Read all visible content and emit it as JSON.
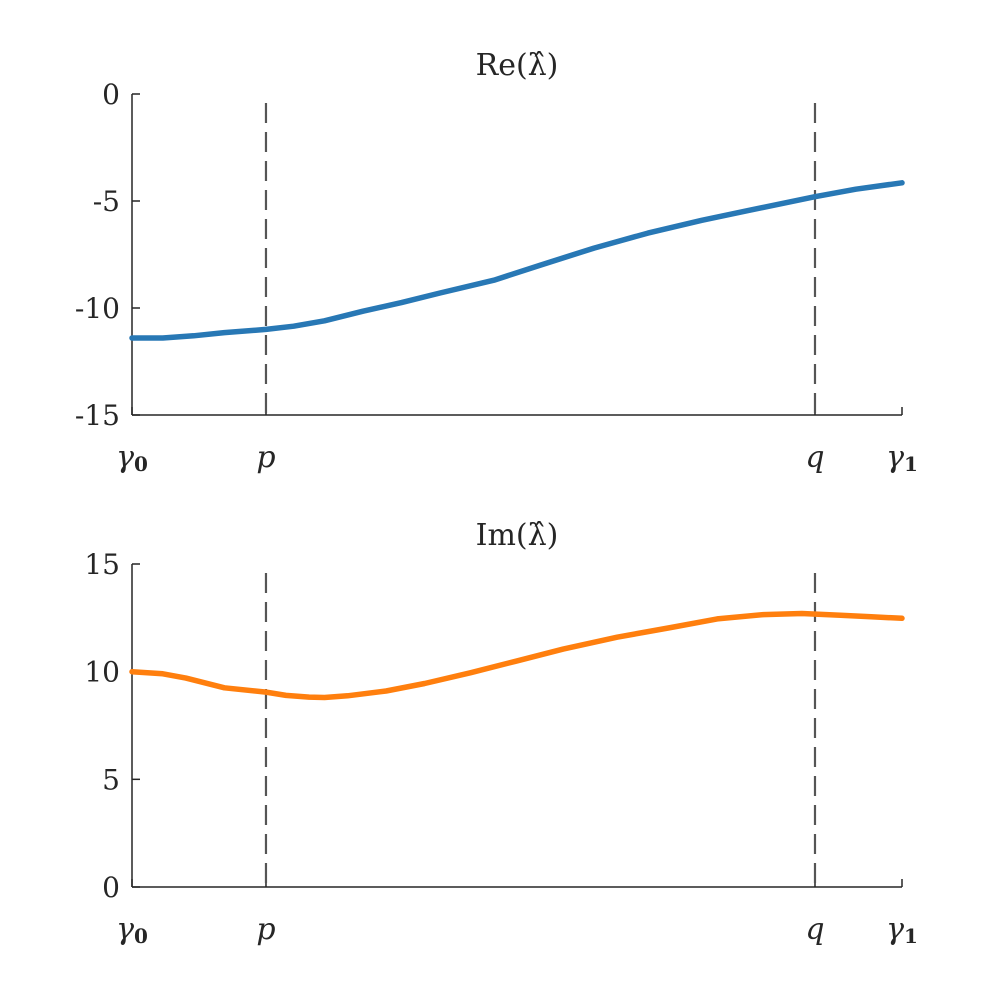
{
  "chart_data": [
    {
      "type": "line",
      "title": "Re(λ̂)",
      "ylim": [
        -15,
        0
      ],
      "yticks": [
        0,
        -5,
        -10,
        -15
      ],
      "ytick_labels": [
        "0",
        "-5",
        "-10",
        "-15"
      ],
      "xlim": [
        0,
        1
      ],
      "xticks": [
        {
          "value": 0.0,
          "label": "γ",
          "sub": "0"
        },
        {
          "value": 0.174,
          "label": "p",
          "sub": ""
        },
        {
          "value": 0.887,
          "label": "q",
          "sub": ""
        },
        {
          "value": 1.0,
          "label": "γ",
          "sub": "1"
        }
      ],
      "vlines": [
        0.174,
        0.887
      ],
      "color": "#2878b5",
      "x": [
        0.0,
        0.04,
        0.08,
        0.12,
        0.174,
        0.21,
        0.25,
        0.3,
        0.35,
        0.4,
        0.47,
        0.53,
        0.6,
        0.67,
        0.74,
        0.8,
        0.887,
        0.94,
        1.0
      ],
      "y": [
        -11.4,
        -11.4,
        -11.3,
        -11.15,
        -11.0,
        -10.85,
        -10.6,
        -10.15,
        -9.75,
        -9.3,
        -8.7,
        -8.0,
        -7.2,
        -6.5,
        -5.9,
        -5.45,
        -4.8,
        -4.45,
        -4.15
      ]
    },
    {
      "type": "line",
      "title": "Im(λ̂)",
      "ylim": [
        0,
        15
      ],
      "yticks": [
        15,
        10,
        5,
        0
      ],
      "ytick_labels": [
        "15",
        "10",
        "5",
        "0"
      ],
      "xlim": [
        0,
        1
      ],
      "xticks": [
        {
          "value": 0.0,
          "label": "γ",
          "sub": "0"
        },
        {
          "value": 0.174,
          "label": "p",
          "sub": ""
        },
        {
          "value": 0.887,
          "label": "q",
          "sub": ""
        },
        {
          "value": 1.0,
          "label": "γ",
          "sub": "1"
        }
      ],
      "vlines": [
        0.174,
        0.887
      ],
      "color": "#ff7f0e",
      "x": [
        0.0,
        0.04,
        0.07,
        0.12,
        0.174,
        0.2,
        0.23,
        0.25,
        0.28,
        0.33,
        0.38,
        0.44,
        0.5,
        0.56,
        0.63,
        0.7,
        0.76,
        0.82,
        0.87,
        0.92,
        0.96,
        1.0
      ],
      "y": [
        10.0,
        9.9,
        9.7,
        9.25,
        9.05,
        8.9,
        8.82,
        8.8,
        8.88,
        9.1,
        9.45,
        9.95,
        10.5,
        11.05,
        11.6,
        12.05,
        12.45,
        12.65,
        12.7,
        12.62,
        12.55,
        12.48
      ]
    }
  ]
}
